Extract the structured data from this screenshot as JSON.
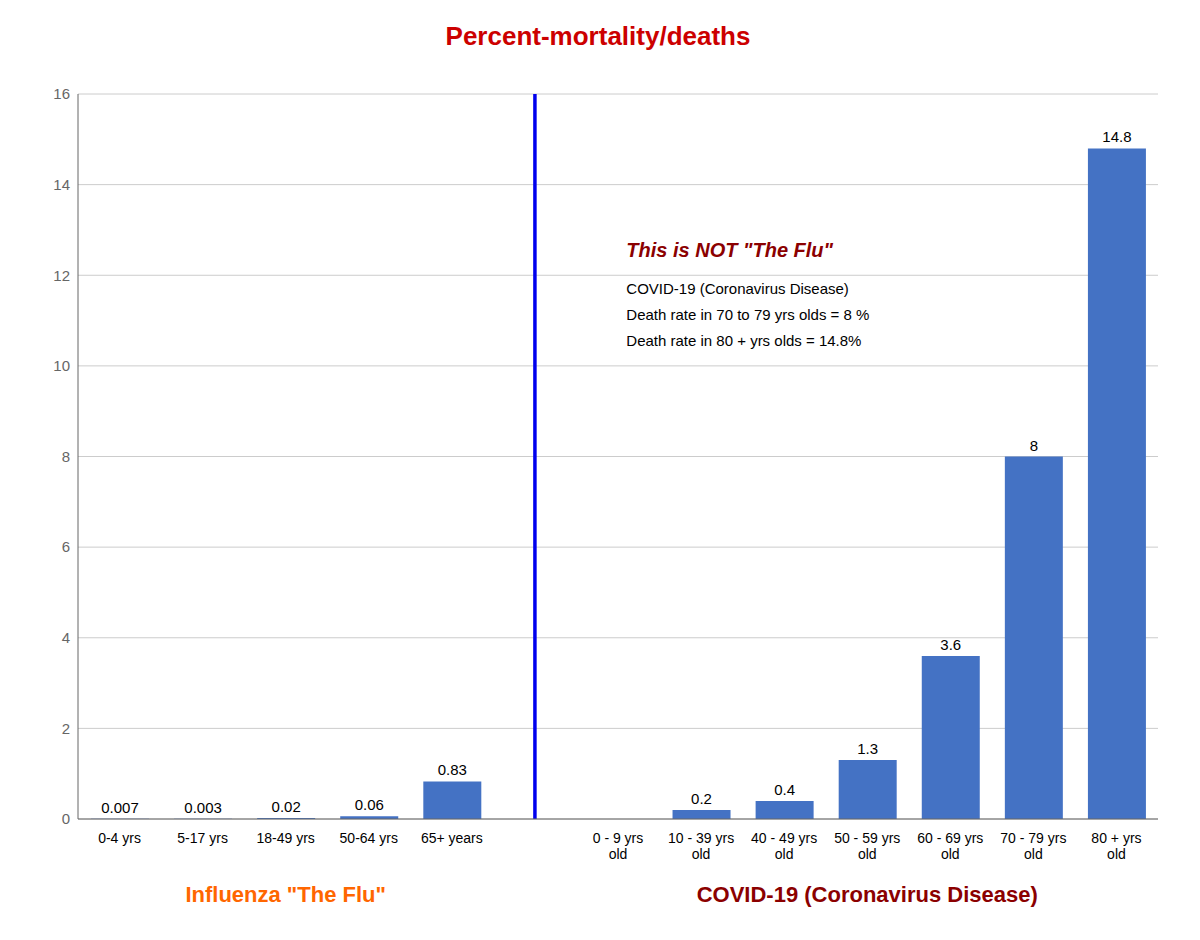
{
  "chart_data": {
    "type": "bar",
    "title": "Percent-mortality/deaths",
    "title_color": "#cc0000",
    "categories": [
      "0-4 yrs",
      "5-17 yrs",
      "18-49 yrs",
      "50-64 yrs",
      "65+ years",
      null,
      "0 - 9 yrs\nold",
      "10 - 39 yrs\nold",
      "40 - 49 yrs\nold",
      "50 - 59 yrs\nold",
      "60 - 69 yrs\nold",
      "70 - 79 yrs\nold",
      "80 + yrs\nold"
    ],
    "values": [
      0.007,
      0.003,
      0.02,
      0.06,
      0.83,
      null,
      0,
      0.2,
      0.4,
      1.3,
      3.6,
      8,
      14.8
    ],
    "color": "#4472C4",
    "ylim": [
      0,
      16
    ],
    "yticks": [
      0,
      2,
      4,
      6,
      8,
      10,
      12,
      14,
      16
    ],
    "grid": true,
    "data_labels": true,
    "sections": [
      {
        "label": "Influenza \"The Flu\"",
        "color": "#FF6600"
      },
      {
        "label": "COVID-19 (Coronavirus Disease)",
        "color": "#8B0000"
      }
    ],
    "divider_color": "#0000EE",
    "annotation": {
      "title": "This is NOT \"The Flu\"",
      "title_color": "#8B0000",
      "lines": [
        "COVID-19 (Coronavirus Disease)",
        "Death rate in 70 to 79 yrs olds = 8 %",
        "Death rate in 80 + yrs olds = 14.8%"
      ],
      "color": "#000000"
    }
  }
}
